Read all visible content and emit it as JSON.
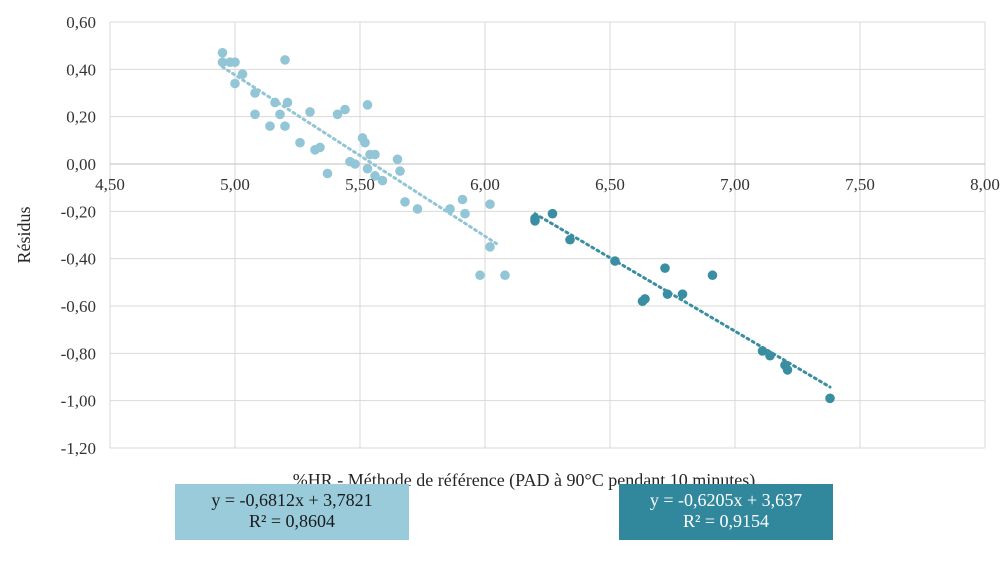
{
  "chart_data": {
    "type": "scatter",
    "xlabel": "%HR - Méthode de référence (PAD à 90°C pendant 10 minutes)",
    "ylabel": "Résidus",
    "xlim": [
      4.5,
      8.0
    ],
    "ylim": [
      -1.2,
      0.6
    ],
    "x_ticks": [
      "4,50",
      "5,00",
      "5,50",
      "6,00",
      "6,50",
      "7,00",
      "7,50",
      "8,00"
    ],
    "y_ticks": [
      "0,60",
      "0,40",
      "0,20",
      "0,00",
      "-0,20",
      "-0,40",
      "-0,60",
      "-0,80",
      "-1,00",
      "-1,20"
    ],
    "grid": true,
    "series": [
      {
        "color": "#92c5d6",
        "trend": {
          "slope": -0.6812,
          "intercept": 3.7821,
          "x_range": [
            4.95,
            6.05
          ]
        },
        "points": [
          [
            4.95,
            0.47
          ],
          [
            4.95,
            0.43
          ],
          [
            4.98,
            0.43
          ],
          [
            5.0,
            0.43
          ],
          [
            5.03,
            0.38
          ],
          [
            5.0,
            0.34
          ],
          [
            5.2,
            0.44
          ],
          [
            5.08,
            0.3
          ],
          [
            5.16,
            0.26
          ],
          [
            5.21,
            0.26
          ],
          [
            5.18,
            0.21
          ],
          [
            5.3,
            0.22
          ],
          [
            5.08,
            0.21
          ],
          [
            5.44,
            0.23
          ],
          [
            5.41,
            0.21
          ],
          [
            5.53,
            0.25
          ],
          [
            5.14,
            0.16
          ],
          [
            5.2,
            0.16
          ],
          [
            5.51,
            0.11
          ],
          [
            5.52,
            0.09
          ],
          [
            5.26,
            0.09
          ],
          [
            5.32,
            0.06
          ],
          [
            5.34,
            0.07
          ],
          [
            5.54,
            0.04
          ],
          [
            5.56,
            0.04
          ],
          [
            5.46,
            0.01
          ],
          [
            5.48,
            0.0
          ],
          [
            5.53,
            -0.02
          ],
          [
            5.65,
            0.02
          ],
          [
            5.66,
            -0.03
          ],
          [
            5.37,
            -0.04
          ],
          [
            5.56,
            -0.05
          ],
          [
            5.59,
            -0.07
          ],
          [
            5.68,
            -0.16
          ],
          [
            5.73,
            -0.19
          ],
          [
            5.86,
            -0.19
          ],
          [
            5.91,
            -0.15
          ],
          [
            5.92,
            -0.21
          ],
          [
            6.02,
            -0.17
          ],
          [
            6.02,
            -0.35
          ],
          [
            5.98,
            -0.47
          ],
          [
            6.08,
            -0.47
          ]
        ]
      },
      {
        "color": "#3a8ea2",
        "trend": {
          "slope": -0.6205,
          "intercept": 3.637,
          "x_range": [
            6.2,
            7.38
          ]
        },
        "points": [
          [
            6.2,
            -0.24
          ],
          [
            6.2,
            -0.23
          ],
          [
            6.27,
            -0.21
          ],
          [
            6.34,
            -0.32
          ],
          [
            6.52,
            -0.41
          ],
          [
            6.63,
            -0.58
          ],
          [
            6.64,
            -0.57
          ],
          [
            6.72,
            -0.44
          ],
          [
            6.73,
            -0.55
          ],
          [
            6.79,
            -0.55
          ],
          [
            6.91,
            -0.47
          ],
          [
            7.11,
            -0.79
          ],
          [
            7.14,
            -0.81
          ],
          [
            7.2,
            -0.85
          ],
          [
            7.21,
            -0.87
          ],
          [
            7.38,
            -0.99
          ]
        ]
      }
    ]
  },
  "equations": {
    "series1_line1": "y = -0,6812x + 3,7821",
    "series1_line2": "R² = 0,8604",
    "series2_line1": "y = -0,6205x + 3,637",
    "series2_line2": "R² = 0,9154"
  }
}
